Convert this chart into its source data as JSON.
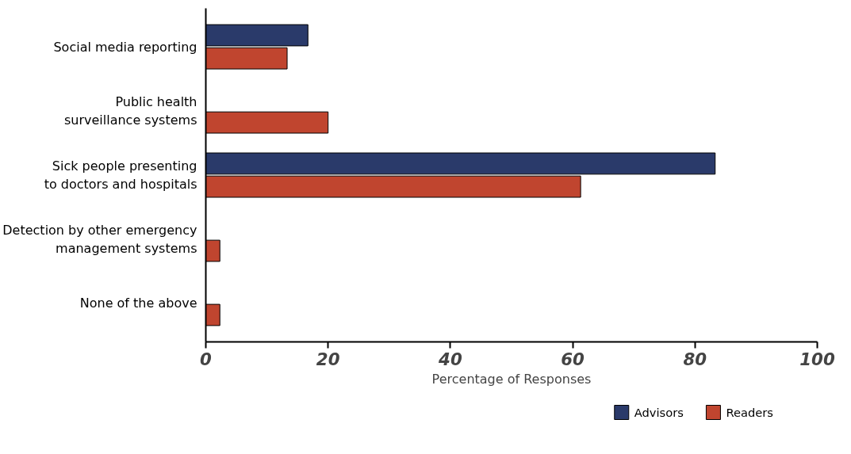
{
  "chart_data": {
    "type": "bar",
    "orientation": "horizontal",
    "xlabel": "Percentage of Responses",
    "categories": [
      "Social media reporting",
      "Public health\nsurveillance systems",
      "Sick people presenting\nto doctors and hospitals",
      "Detection by other emergency\nmanagement systems",
      "None of the above"
    ],
    "series": [
      {
        "name": "Advisors",
        "color": "#2a3a6a",
        "values": [
          16.7,
          null,
          83.3,
          null,
          null
        ]
      },
      {
        "name": "Readers",
        "color": "#c0452f",
        "values": [
          13.3,
          20,
          61.3,
          2.3,
          2.3
        ]
      }
    ],
    "xlim": [
      0,
      100
    ],
    "xticks": [
      0,
      20,
      40,
      60,
      80,
      100
    ],
    "legend": "bottom right"
  }
}
